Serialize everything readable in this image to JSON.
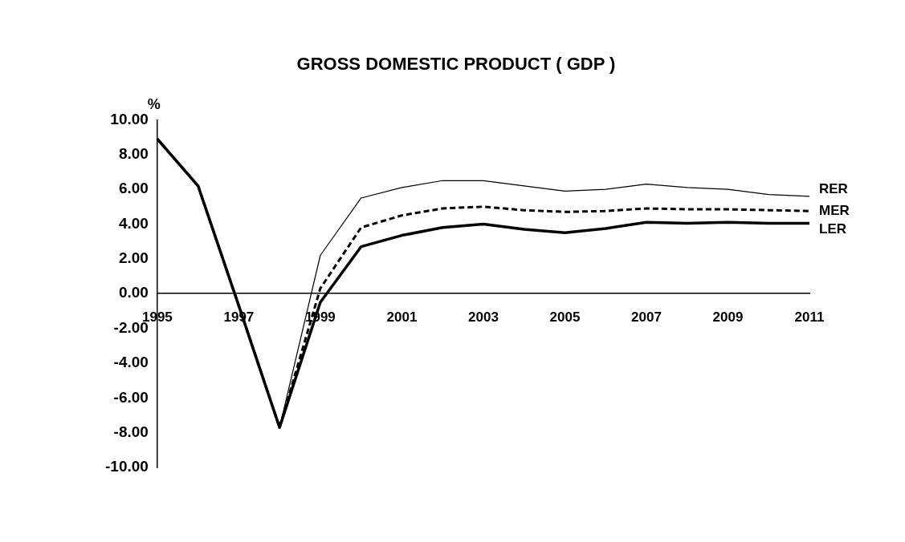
{
  "chart_data": {
    "type": "line",
    "title": "GROSS DOMESTIC PRODUCT ( GDP )",
    "ylabel": "%",
    "categories": [
      "1995",
      null,
      "1997",
      null,
      "1999",
      null,
      "2001",
      null,
      "2003",
      null,
      "2005",
      null,
      "2007",
      null,
      "2009",
      null,
      "2011"
    ],
    "ylim": [
      -10,
      10
    ],
    "yticks": [
      {
        "value": 10,
        "label": "10.00"
      },
      {
        "value": 8,
        "label": "8.00"
      },
      {
        "value": 6,
        "label": "6.00"
      },
      {
        "value": 4,
        "label": "4.00"
      },
      {
        "value": 2,
        "label": "2.00"
      },
      {
        "value": 0,
        "label": "0.00"
      },
      {
        "value": -2,
        "label": "-2.00"
      },
      {
        "value": -4,
        "label": "-4.00"
      },
      {
        "value": -6,
        "label": "-6.00"
      },
      {
        "value": -8,
        "label": "-8.00"
      },
      {
        "value": -10,
        "label": "-10.00"
      }
    ],
    "grid": false,
    "legend": false,
    "marker": "none",
    "series": [
      {
        "name": "RER",
        "color": "#000000",
        "line_style": "solid",
        "values": [
          8.9,
          6.2,
          -0.7,
          -7.7,
          2.2,
          5.5,
          6.1,
          6.5,
          6.5,
          6.2,
          5.9,
          6.0,
          6.3,
          6.1,
          6.0,
          5.7,
          5.6
        ]
      },
      {
        "name": "MER",
        "color": "#000000",
        "line_style": "dashed",
        "values": [
          8.9,
          6.2,
          -0.7,
          -7.7,
          0.3,
          3.8,
          4.5,
          4.9,
          5.0,
          4.8,
          4.7,
          4.75,
          4.9,
          4.85,
          4.85,
          4.8,
          4.75
        ]
      },
      {
        "name": "LER",
        "color": "#000000",
        "line_style": "solid",
        "values": [
          8.9,
          6.2,
          -0.7,
          -7.7,
          -0.5,
          2.7,
          3.35,
          3.8,
          4.0,
          3.7,
          3.5,
          3.75,
          4.1,
          4.05,
          4.1,
          4.05,
          4.05
        ]
      }
    ]
  }
}
